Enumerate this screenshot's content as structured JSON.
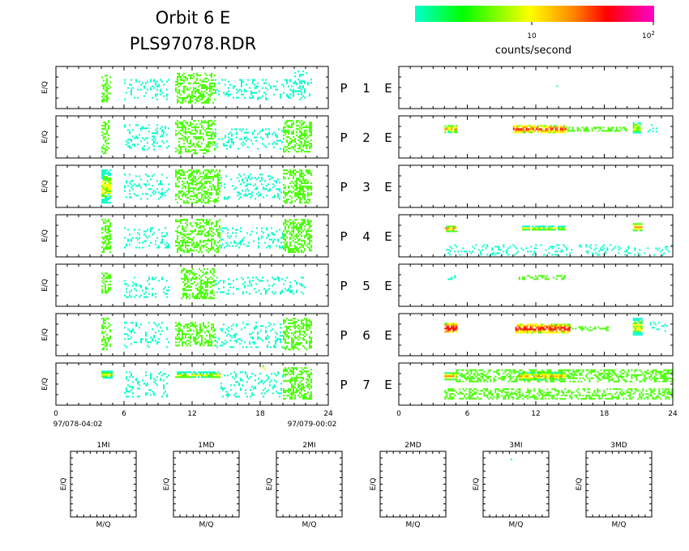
{
  "title": {
    "line1": "Orbit  6  E",
    "line2": "PLS97078.RDR"
  },
  "colorbar": {
    "label": "counts/second",
    "tick_10": "10",
    "tick_100_base": "10",
    "tick_100_exp": "2",
    "stops": [
      "#00ffcc",
      "#00ff00",
      "#ffff00",
      "#ff8800",
      "#ff0000",
      "#ff00cc"
    ]
  },
  "axes": {
    "ylabel": "E/Q",
    "xticks": [
      "0",
      "6",
      "12",
      "18",
      "24"
    ],
    "start_label": "97/078-04:02",
    "end_label": "97/079-00:02",
    "mass_xlabel": "M/Q"
  },
  "mid_labels": {
    "p": "P",
    "e": "E"
  },
  "colors": {
    "cyan": "#00ffcc",
    "green": "#44ff00",
    "yellow": "#ffff00",
    "orange": "#ff8800",
    "red": "#ff0000",
    "frame": "#000000"
  },
  "chart_data": {
    "type": "heatmap",
    "x_range": [
      0,
      24
    ],
    "x_unit": "hours",
    "color_scale": "log",
    "color_range": [
      1,
      100
    ],
    "panels": [
      {
        "label": "1",
        "left": {
          "bands": [
            [
              4.0,
              4.8,
              0.2,
              0.85,
              1
            ],
            [
              6,
              10,
              0.3,
              0.8,
              0
            ],
            [
              10.5,
              14,
              0.15,
              0.85,
              1
            ],
            [
              14,
              22,
              0.3,
              0.8,
              0
            ],
            [
              21,
              22.5,
              0.1,
              0.7,
              0
            ]
          ]
        },
        "right": {
          "bands": [
            [
              4.6,
              4.8,
              0.45,
              0.55,
              0
            ],
            [
              13.8,
              14.0,
              0.45,
              0.55,
              0
            ]
          ]
        }
      },
      {
        "label": "2",
        "left": {
          "bands": [
            [
              4.0,
              4.7,
              0.1,
              0.9,
              1
            ],
            [
              6,
              10,
              0.2,
              0.8,
              0
            ],
            [
              10.5,
              14,
              0.1,
              0.9,
              1
            ],
            [
              14,
              20,
              0.3,
              0.8,
              0
            ],
            [
              20,
              22.5,
              0.1,
              0.85,
              1
            ]
          ]
        },
        "right": {
          "bands": [
            [
              4.0,
              5.0,
              0.22,
              0.38,
              3
            ],
            [
              10,
              14.6,
              0.22,
              0.38,
              4
            ],
            [
              14.6,
              20,
              0.26,
              0.36,
              1
            ],
            [
              20.5,
              21.2,
              0.15,
              0.4,
              2
            ],
            [
              21.5,
              22.5,
              0.2,
              0.38,
              0
            ]
          ]
        }
      },
      {
        "label": "3",
        "left": {
          "bands": [
            [
              4.0,
              4.8,
              0.1,
              0.9,
              2
            ],
            [
              6,
              10,
              0.2,
              0.8,
              0
            ],
            [
              10.5,
              14.5,
              0.1,
              0.9,
              1
            ],
            [
              14.5,
              20,
              0.2,
              0.8,
              0
            ],
            [
              20,
              22.5,
              0.1,
              0.9,
              1
            ]
          ]
        },
        "right": {
          "bands": []
        }
      },
      {
        "label": "4",
        "left": {
          "bands": [
            [
              4.0,
              4.8,
              0.1,
              0.9,
              1
            ],
            [
              6,
              10,
              0.3,
              0.8,
              0
            ],
            [
              10.5,
              14.5,
              0.1,
              0.9,
              1
            ],
            [
              14.5,
              20,
              0.3,
              0.8,
              0
            ],
            [
              20,
              22.5,
              0.1,
              0.9,
              1
            ]
          ]
        },
        "right": {
          "bands": [
            [
              4.0,
              5.0,
              0.26,
              0.38,
              3
            ],
            [
              10.8,
              14.5,
              0.26,
              0.36,
              2
            ],
            [
              20.5,
              21.3,
              0.2,
              0.36,
              3
            ],
            [
              4.0,
              24,
              0.7,
              0.95,
              0
            ]
          ]
        }
      },
      {
        "label": "5",
        "left": {
          "bands": [
            [
              4.0,
              4.8,
              0.2,
              0.7,
              1
            ],
            [
              6,
              10,
              0.3,
              0.8,
              0
            ],
            [
              11,
              14,
              0.1,
              0.8,
              1
            ],
            [
              14,
              22,
              0.3,
              0.7,
              0
            ]
          ]
        },
        "right": {
          "bands": [
            [
              4.0,
              5.0,
              0.26,
              0.34,
              0
            ],
            [
              10.5,
              14.5,
              0.26,
              0.36,
              1
            ]
          ]
        }
      },
      {
        "label": "6",
        "left": {
          "bands": [
            [
              4.0,
              4.8,
              0.1,
              0.85,
              1
            ],
            [
              6,
              10,
              0.2,
              0.8,
              0
            ],
            [
              10.5,
              14,
              0.2,
              0.75,
              1
            ],
            [
              14,
              20,
              0.2,
              0.8,
              0
            ],
            [
              20,
              22.5,
              0.1,
              0.85,
              1
            ]
          ]
        },
        "right": {
          "bands": [
            [
              4.0,
              5.0,
              0.22,
              0.45,
              4
            ],
            [
              10.2,
              15.0,
              0.24,
              0.44,
              4
            ],
            [
              15,
              18.5,
              0.3,
              0.4,
              1
            ],
            [
              20.5,
              21.3,
              0.1,
              0.5,
              2
            ],
            [
              22,
              23.5,
              0.2,
              0.4,
              0
            ]
          ]
        }
      },
      {
        "label": "7",
        "left": {
          "bands": [
            [
              4.0,
              5.0,
              0.18,
              0.34,
              2
            ],
            [
              6,
              10,
              0.2,
              0.8,
              0
            ],
            [
              10.5,
              14.5,
              0.2,
              0.34,
              2
            ],
            [
              14.5,
              20,
              0.2,
              0.8,
              0
            ],
            [
              20,
              22.5,
              0.1,
              0.85,
              1
            ],
            [
              18.2,
              18.4,
              0.05,
              0.15,
              3
            ]
          ]
        },
        "right": {
          "bands": [
            [
              4.0,
              5.0,
              0.22,
              0.38,
              3
            ],
            [
              5,
              24,
              0.15,
              0.45,
              1
            ],
            [
              10.5,
              14.5,
              0.22,
              0.38,
              3
            ],
            [
              4.0,
              24,
              0.6,
              0.85,
              1
            ]
          ]
        }
      }
    ],
    "mass_panels": [
      {
        "label": "1MI",
        "xlabel": "M/Q",
        "ylabel": "E/Q"
      },
      {
        "label": "1MD",
        "xlabel": "M/Q",
        "ylabel": "E/Q"
      },
      {
        "label": "2MI",
        "xlabel": "M/Q",
        "ylabel": "E/Q"
      },
      {
        "label": "2MD",
        "xlabel": "M/Q",
        "ylabel": "E/Q"
      },
      {
        "label": "3MI",
        "xlabel": "M/Q",
        "ylabel": "E/Q"
      },
      {
        "label": "3MD",
        "xlabel": "M/Q",
        "ylabel": "E/Q"
      }
    ]
  }
}
